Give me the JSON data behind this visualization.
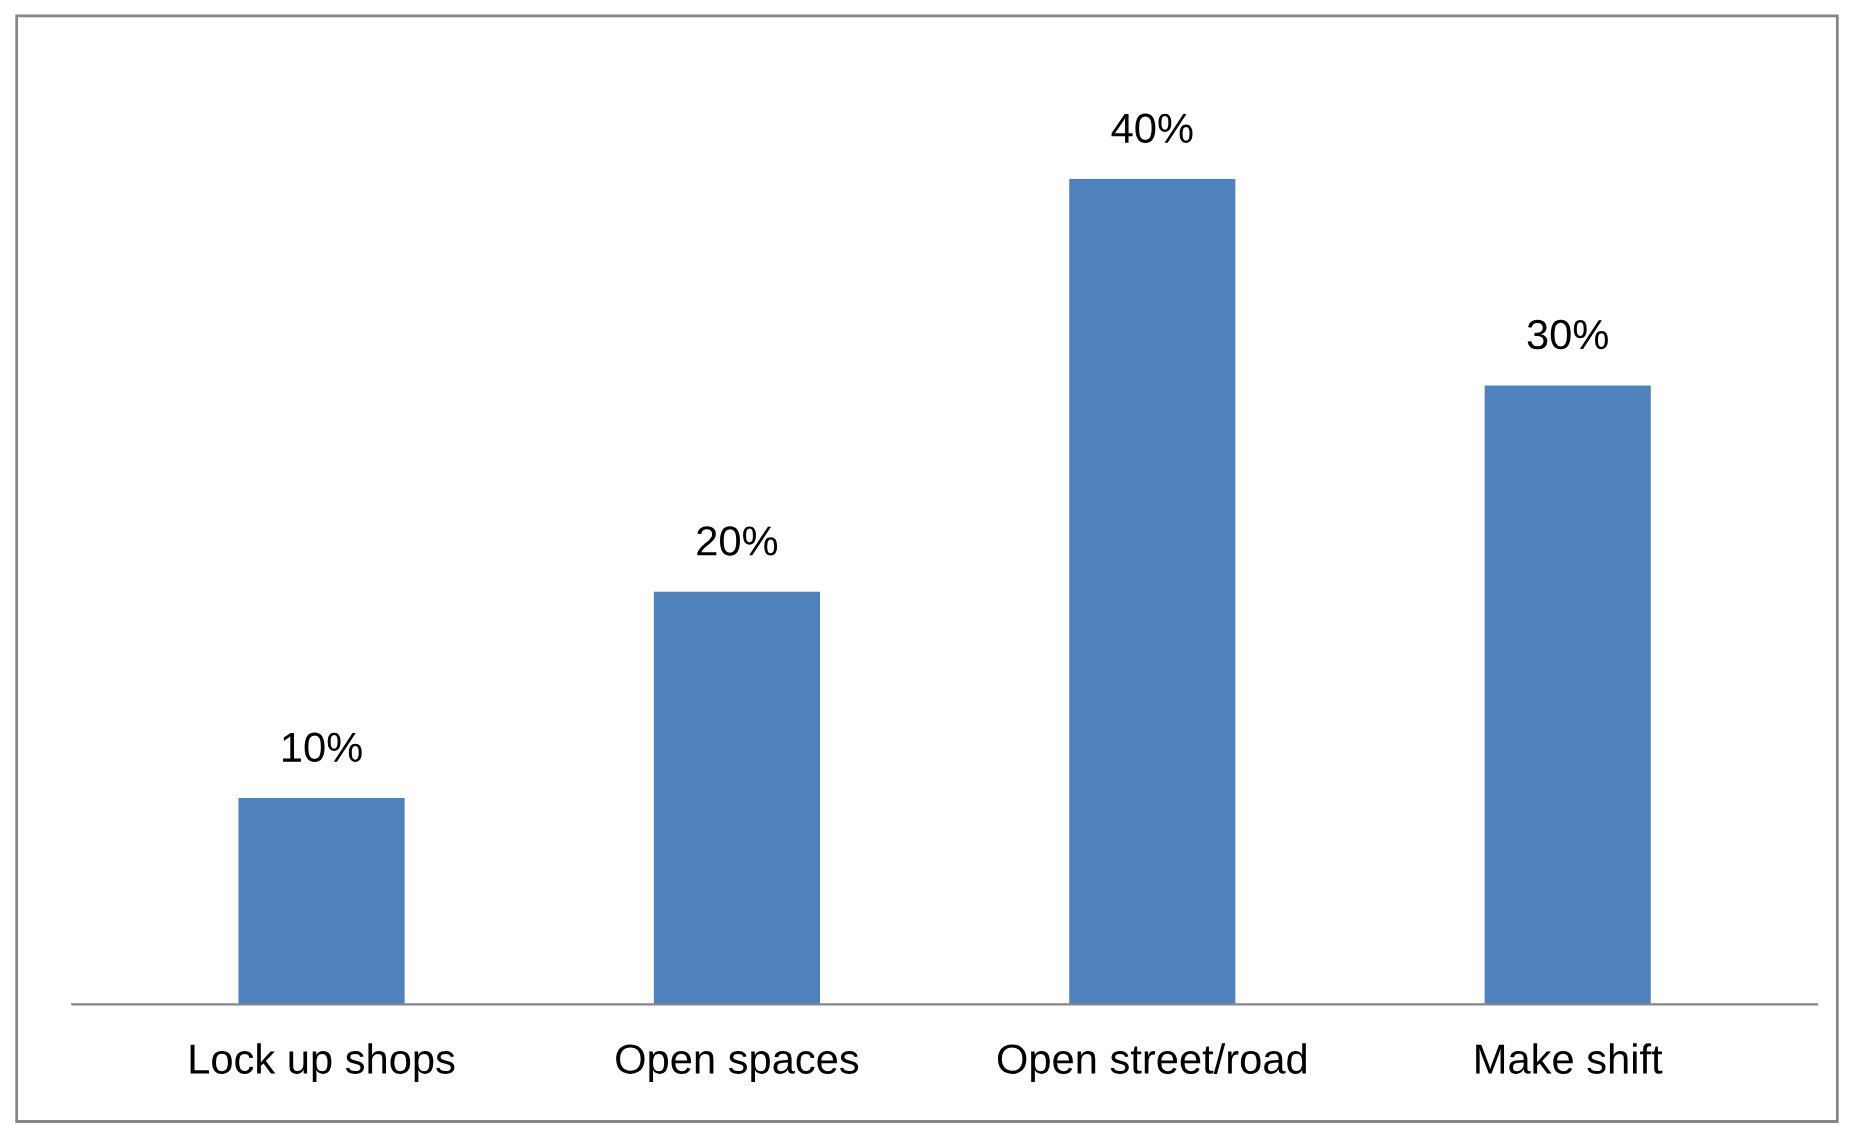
{
  "chart_data": {
    "type": "bar",
    "categories": [
      "Lock up shops",
      "Open spaces",
      "Open street/road",
      "Make shift"
    ],
    "values": [
      10,
      20,
      40,
      30
    ],
    "value_labels": [
      "10%",
      "20%",
      "40%",
      "30%"
    ],
    "color": "#4f81bd"
  }
}
